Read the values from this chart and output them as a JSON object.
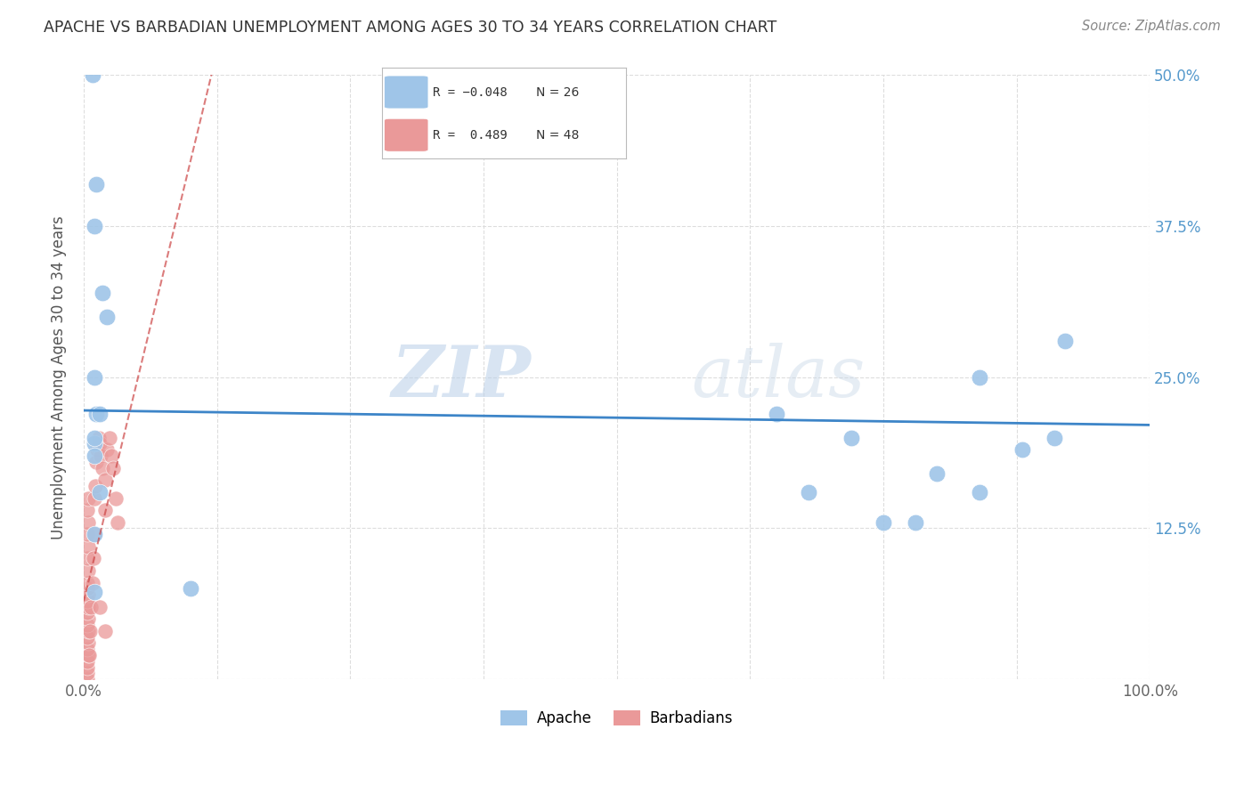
{
  "title": "APACHE VS BARBADIAN UNEMPLOYMENT AMONG AGES 30 TO 34 YEARS CORRELATION CHART",
  "source": "Source: ZipAtlas.com",
  "ylabel": "Unemployment Among Ages 30 to 34 years",
  "apache_x": [
    0.008,
    0.012,
    0.018,
    0.01,
    0.022,
    0.01,
    0.012,
    0.01,
    0.015,
    0.01,
    0.01,
    0.015,
    0.1,
    0.65,
    0.72,
    0.8,
    0.88,
    0.92,
    0.84,
    0.91,
    0.75,
    0.68,
    0.78,
    0.84,
    0.01,
    0.01
  ],
  "apache_y": [
    0.5,
    0.41,
    0.32,
    0.375,
    0.3,
    0.25,
    0.22,
    0.195,
    0.22,
    0.185,
    0.2,
    0.155,
    0.075,
    0.22,
    0.2,
    0.17,
    0.19,
    0.28,
    0.155,
    0.2,
    0.13,
    0.155,
    0.13,
    0.25,
    0.12,
    0.072
  ],
  "barbadian_x": [
    0.003,
    0.003,
    0.003,
    0.003,
    0.004,
    0.003,
    0.004,
    0.003,
    0.004,
    0.003,
    0.004,
    0.003,
    0.004,
    0.003,
    0.004,
    0.003,
    0.003,
    0.004,
    0.003,
    0.004,
    0.003,
    0.004,
    0.003,
    0.004,
    0.005,
    0.006,
    0.007,
    0.008,
    0.009,
    0.01,
    0.01,
    0.011,
    0.012,
    0.013,
    0.014,
    0.015,
    0.016,
    0.018,
    0.02,
    0.02,
    0.022,
    0.024,
    0.026,
    0.028,
    0.03,
    0.032,
    0.02,
    0.015
  ],
  "barbadian_y": [
    0.0,
    0.005,
    0.01,
    0.015,
    0.02,
    0.025,
    0.03,
    0.035,
    0.04,
    0.045,
    0.05,
    0.055,
    0.06,
    0.065,
    0.07,
    0.075,
    0.08,
    0.09,
    0.1,
    0.11,
    0.12,
    0.13,
    0.14,
    0.15,
    0.02,
    0.04,
    0.06,
    0.08,
    0.1,
    0.12,
    0.15,
    0.16,
    0.18,
    0.19,
    0.2,
    0.195,
    0.185,
    0.175,
    0.165,
    0.14,
    0.19,
    0.2,
    0.185,
    0.175,
    0.15,
    0.13,
    0.04,
    0.06
  ],
  "apache_R": -0.048,
  "apache_N": 26,
  "barbadian_R": 0.489,
  "barbadian_N": 48,
  "apache_color": "#9fc5e8",
  "barbadian_color": "#ea9999",
  "apache_line_color": "#3d85c8",
  "barbadian_line_color": "#cc4444",
  "xlim": [
    0.0,
    1.0
  ],
  "ylim": [
    0.0,
    0.5
  ],
  "yticks": [
    0.0,
    0.125,
    0.25,
    0.375,
    0.5
  ],
  "right_yticklabels": [
    "",
    "12.5%",
    "25.0%",
    "37.5%",
    "50.0%"
  ],
  "xticks": [
    0.0,
    0.125,
    0.25,
    0.375,
    0.5,
    0.625,
    0.75,
    0.875,
    1.0
  ],
  "xticklabels": [
    "0.0%",
    "",
    "",
    "",
    "",
    "",
    "",
    "",
    "100.0%"
  ],
  "watermark_zip": "ZIP",
  "watermark_atlas": "atlas",
  "background_color": "#ffffff",
  "grid_color": "#dddddd",
  "legend_r1": "R = −0.048",
  "legend_n1": "N = 26",
  "legend_r2": "R =  0.489",
  "legend_n2": "N = 48"
}
